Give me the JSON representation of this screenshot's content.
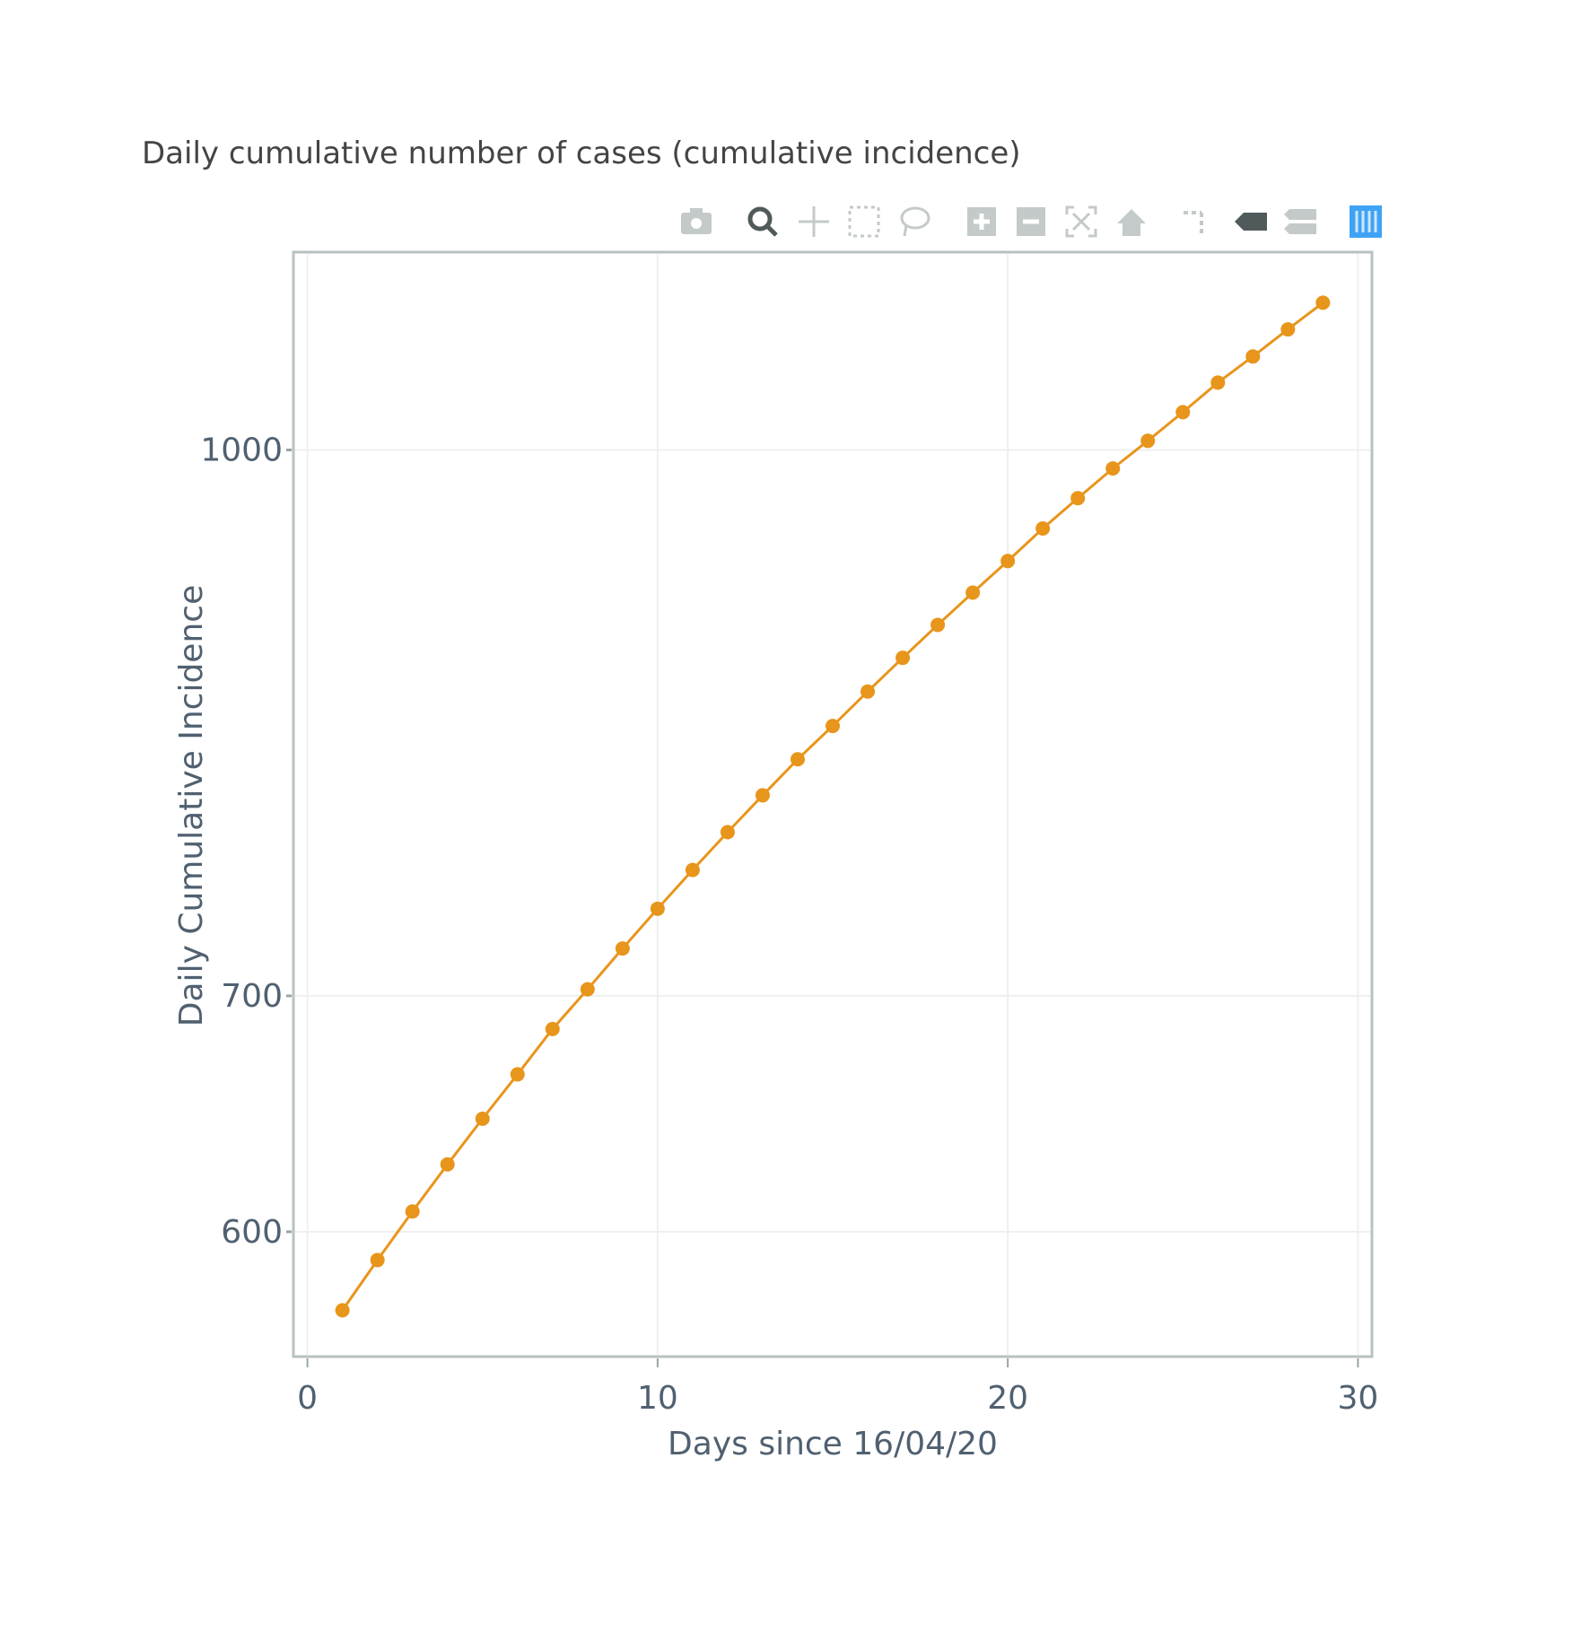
{
  "chart_data": {
    "type": "line",
    "title": "Daily cumulative number of cases (cumulative incidence)",
    "xlabel": "Days since 16/04/20",
    "ylabel": "Daily Cumulative Incidence",
    "xlim": [
      -0.4,
      30.4
    ],
    "ylim": [
      553,
      1138
    ],
    "yscale": "log",
    "xticks": [
      0,
      10,
      20,
      30
    ],
    "xtick_labels": [
      "0",
      "10",
      "20",
      "30"
    ],
    "yticks": [
      600,
      700,
      1000
    ],
    "ytick_labels": [
      "600",
      "700",
      "1000"
    ],
    "grid": true,
    "series": [
      {
        "name": "Cumulative incidence",
        "color": "#e8951c",
        "mode": "lines+markers",
        "x": [
          1,
          2,
          3,
          4,
          5,
          6,
          7,
          8,
          9,
          10,
          11,
          12,
          13,
          14,
          15,
          16,
          17,
          18,
          19,
          20,
          21,
          22,
          23,
          24,
          25,
          26,
          27,
          28,
          29
        ],
        "y": [
          570,
          589,
          608,
          627,
          646,
          665,
          685,
          703,
          722,
          741,
          760,
          779,
          798,
          817,
          835,
          854,
          873,
          892,
          911,
          930,
          950,
          969,
          988,
          1006,
          1025,
          1045,
          1063,
          1082,
          1101
        ]
      }
    ]
  },
  "toolbar": {
    "icons": [
      "camera-icon",
      "zoom-icon",
      "pan-icon",
      "box-select-icon",
      "lasso-icon",
      "zoom-in-icon",
      "zoom-out-icon",
      "autoscale-icon",
      "reset-axes-icon",
      "spike-lines-icon",
      "hover-closest-icon",
      "hover-compare-icon",
      "plotly-logo-icon"
    ],
    "active": "zoom-icon",
    "logo_color": "#3fa3f5"
  }
}
